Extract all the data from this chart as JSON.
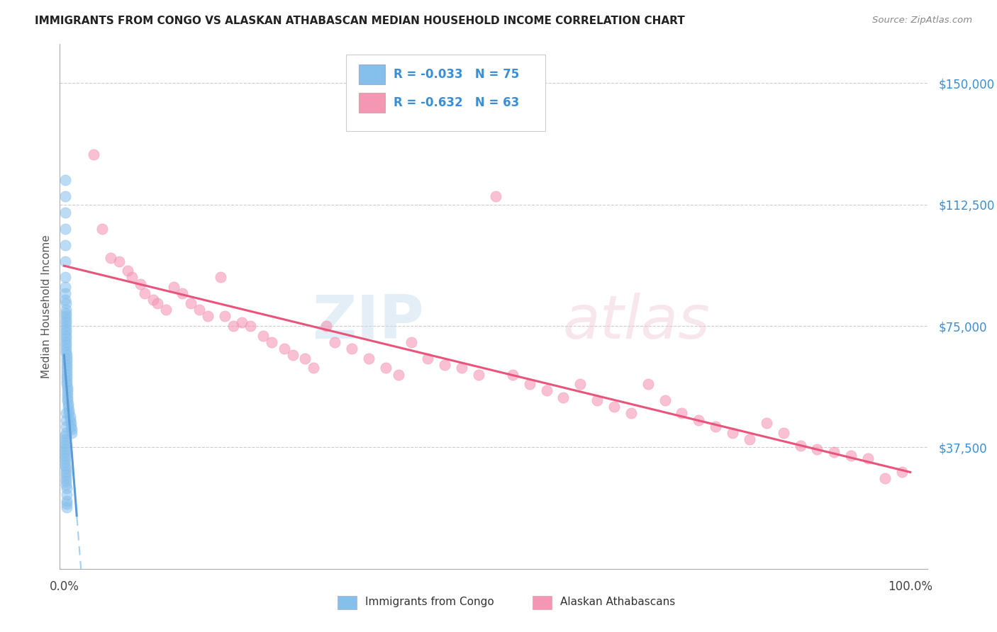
{
  "title": "IMMIGRANTS FROM CONGO VS ALASKAN ATHABASCAN MEDIAN HOUSEHOLD INCOME CORRELATION CHART",
  "source": "Source: ZipAtlas.com",
  "ylabel": "Median Household Income",
  "yticks": [
    37500,
    75000,
    112500,
    150000
  ],
  "ytick_labels": [
    "$37,500",
    "$75,000",
    "$112,500",
    "$150,000"
  ],
  "xlim": [
    -0.005,
    1.02
  ],
  "ylim": [
    0,
    162000
  ],
  "color_blue": "#85bfec",
  "color_pink": "#f496b4",
  "color_blue_line": "#5b9bd5",
  "color_pink_line": "#e8547a",
  "color_blue_dashed": "#a8d0f0",
  "watermark_zip": "ZIP",
  "watermark_atlas": "atlas",
  "blue_x": [
    0.001,
    0.001,
    0.001,
    0.001,
    0.001,
    0.001,
    0.001,
    0.001,
    0.001,
    0.001,
    0.002,
    0.002,
    0.002,
    0.002,
    0.002,
    0.002,
    0.002,
    0.002,
    0.002,
    0.002,
    0.002,
    0.002,
    0.002,
    0.002,
    0.002,
    0.003,
    0.003,
    0.003,
    0.003,
    0.003,
    0.003,
    0.003,
    0.003,
    0.003,
    0.003,
    0.004,
    0.004,
    0.004,
    0.004,
    0.004,
    0.005,
    0.005,
    0.006,
    0.006,
    0.007,
    0.007,
    0.008,
    0.008,
    0.009,
    0.009,
    0.001,
    0.001,
    0.001,
    0.001,
    0.001,
    0.001,
    0.001,
    0.001,
    0.001,
    0.001,
    0.002,
    0.002,
    0.002,
    0.002,
    0.002,
    0.002,
    0.002,
    0.002,
    0.002,
    0.002,
    0.003,
    0.003,
    0.003,
    0.003,
    0.003
  ],
  "blue_y": [
    120000,
    115000,
    110000,
    105000,
    100000,
    95000,
    90000,
    87000,
    85000,
    83000,
    82000,
    80000,
    79000,
    78000,
    77000,
    76000,
    75000,
    74000,
    73000,
    72000,
    71000,
    70000,
    69000,
    68000,
    67000,
    66000,
    65000,
    64000,
    63000,
    62000,
    61000,
    60000,
    59000,
    58000,
    57000,
    56000,
    55000,
    54000,
    53000,
    52000,
    51000,
    50000,
    49000,
    48000,
    47000,
    46000,
    45000,
    44000,
    43000,
    42000,
    41000,
    40000,
    39000,
    38000,
    37000,
    36000,
    35000,
    34000,
    33000,
    32000,
    31000,
    30000,
    29000,
    28000,
    27000,
    26000,
    48000,
    46000,
    44000,
    42000,
    25000,
    23000,
    21000,
    20000,
    19000
  ],
  "pink_x": [
    0.035,
    0.045,
    0.055,
    0.065,
    0.075,
    0.08,
    0.09,
    0.095,
    0.105,
    0.11,
    0.12,
    0.13,
    0.14,
    0.15,
    0.16,
    0.17,
    0.185,
    0.19,
    0.2,
    0.21,
    0.22,
    0.235,
    0.245,
    0.26,
    0.27,
    0.285,
    0.295,
    0.31,
    0.32,
    0.34,
    0.36,
    0.38,
    0.395,
    0.41,
    0.43,
    0.45,
    0.47,
    0.49,
    0.51,
    0.53,
    0.55,
    0.57,
    0.59,
    0.61,
    0.63,
    0.65,
    0.67,
    0.69,
    0.71,
    0.73,
    0.75,
    0.77,
    0.79,
    0.81,
    0.83,
    0.85,
    0.87,
    0.89,
    0.91,
    0.93,
    0.95,
    0.97,
    0.99
  ],
  "pink_y": [
    128000,
    105000,
    96000,
    95000,
    92000,
    90000,
    88000,
    85000,
    83000,
    82000,
    80000,
    87000,
    85000,
    82000,
    80000,
    78000,
    90000,
    78000,
    75000,
    76000,
    75000,
    72000,
    70000,
    68000,
    66000,
    65000,
    62000,
    75000,
    70000,
    68000,
    65000,
    62000,
    60000,
    70000,
    65000,
    63000,
    62000,
    60000,
    115000,
    60000,
    57000,
    55000,
    53000,
    57000,
    52000,
    50000,
    48000,
    57000,
    52000,
    48000,
    46000,
    44000,
    42000,
    40000,
    45000,
    42000,
    38000,
    37000,
    36000,
    35000,
    34000,
    28000,
    30000
  ]
}
